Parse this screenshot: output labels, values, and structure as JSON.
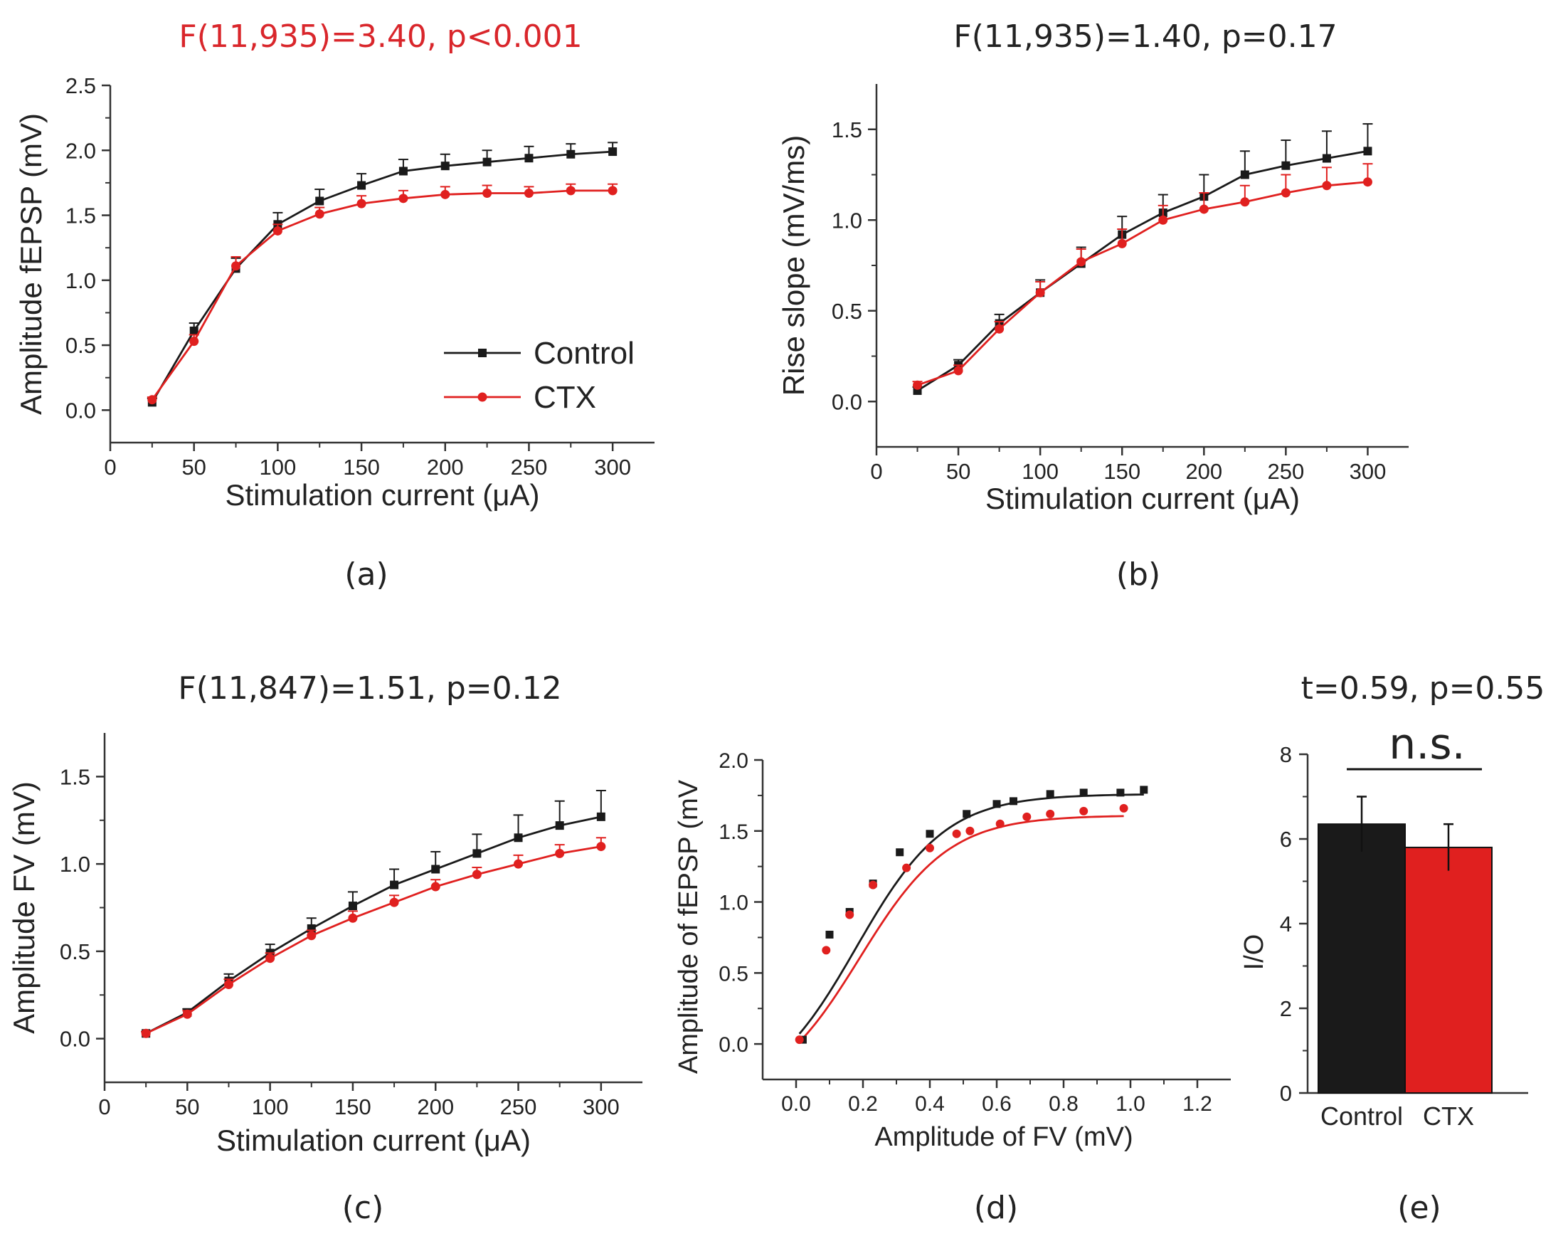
{
  "colors": {
    "control": "#1a1a1a",
    "ctx": "#e0201f",
    "stat_red": "#d9262b",
    "axis": "#333333"
  },
  "chart_data": [
    {
      "id": "a",
      "type": "line",
      "caption": "(a)",
      "title": "F(11,935)=3.40, p<0.001",
      "title_color": "#d9262b",
      "xlabel": "Stimulation current (μA)",
      "ylabel": "Amplitude fEPSP (mV)",
      "xlim": [
        0,
        325
      ],
      "ylim": [
        -0.25,
        2.5
      ],
      "xticks": [
        0,
        50,
        100,
        150,
        200,
        250,
        300
      ],
      "xtick_labels": [
        "0",
        "50",
        "100",
        "150",
        "200",
        "250",
        "300"
      ],
      "yticks": [
        0,
        0.5,
        1.0,
        1.5,
        2.0,
        2.5
      ],
      "ytick_labels": [
        "0.0",
        "0.5",
        "1.0",
        "1.5",
        "2.0",
        "2.5"
      ],
      "x": [
        25,
        50,
        75,
        100,
        125,
        150,
        175,
        200,
        225,
        250,
        275,
        300
      ],
      "series": [
        {
          "name": "Control",
          "marker": "square",
          "values": [
            0.06,
            0.61,
            1.09,
            1.43,
            1.61,
            1.73,
            1.84,
            1.88,
            1.91,
            1.94,
            1.97,
            1.99
          ],
          "err": [
            0.03,
            0.06,
            0.08,
            0.09,
            0.09,
            0.09,
            0.09,
            0.09,
            0.09,
            0.09,
            0.08,
            0.07
          ]
        },
        {
          "name": "CTX",
          "marker": "circle",
          "values": [
            0.08,
            0.53,
            1.11,
            1.38,
            1.51,
            1.59,
            1.63,
            1.66,
            1.67,
            1.67,
            1.69,
            1.69
          ],
          "err": [
            0.02,
            0.05,
            0.07,
            0.05,
            0.05,
            0.06,
            0.06,
            0.06,
            0.06,
            0.05,
            0.05,
            0.05
          ]
        }
      ],
      "legend": {
        "position": "bottom-right",
        "labels": [
          "Control",
          "CTX"
        ]
      }
    },
    {
      "id": "b",
      "type": "line",
      "caption": "(b)",
      "title": "F(11,935)=1.40, p=0.17",
      "title_color": "#222222",
      "xlabel": "Stimulation current (μA)",
      "ylabel": "Rise slope (mV/ms)",
      "xlim": [
        0,
        325
      ],
      "ylim": [
        -0.25,
        1.75
      ],
      "xticks": [
        0,
        50,
        100,
        150,
        200,
        250,
        300
      ],
      "xtick_labels": [
        "0",
        "50",
        "100",
        "150",
        "200",
        "250",
        "300"
      ],
      "yticks": [
        0,
        0.5,
        1.0,
        1.5
      ],
      "ytick_labels": [
        "0.0",
        "0.5",
        "1.0",
        "1.5"
      ],
      "x": [
        25,
        50,
        75,
        100,
        125,
        150,
        175,
        200,
        225,
        250,
        275,
        300
      ],
      "series": [
        {
          "name": "Control",
          "marker": "square",
          "values": [
            0.06,
            0.2,
            0.43,
            0.6,
            0.76,
            0.92,
            1.04,
            1.13,
            1.25,
            1.3,
            1.34,
            1.38
          ],
          "err": [
            0.02,
            0.03,
            0.05,
            0.07,
            0.09,
            0.1,
            0.1,
            0.12,
            0.13,
            0.14,
            0.15,
            0.15
          ]
        },
        {
          "name": "CTX",
          "marker": "circle",
          "values": [
            0.09,
            0.17,
            0.4,
            0.6,
            0.77,
            0.87,
            1.0,
            1.06,
            1.1,
            1.15,
            1.19,
            1.21
          ],
          "err": [
            0.02,
            0.03,
            0.04,
            0.06,
            0.07,
            0.08,
            0.08,
            0.09,
            0.09,
            0.1,
            0.1,
            0.1
          ]
        }
      ]
    },
    {
      "id": "c",
      "type": "line",
      "caption": "(c)",
      "title": "F(11,847)=1.51, p=0.12",
      "title_color": "#222222",
      "xlabel": "Stimulation current (μA)",
      "ylabel": "Amplitude FV (mV)",
      "xlim": [
        0,
        325
      ],
      "ylim": [
        -0.25,
        1.75
      ],
      "xticks": [
        0,
        50,
        100,
        150,
        200,
        250,
        300
      ],
      "xtick_labels": [
        "0",
        "50",
        "100",
        "150",
        "200",
        "250",
        "300"
      ],
      "yticks": [
        0,
        0.5,
        1.0,
        1.5
      ],
      "ytick_labels": [
        "0.0",
        "0.5",
        "1.0",
        "1.5"
      ],
      "x": [
        25,
        50,
        75,
        100,
        125,
        150,
        175,
        200,
        225,
        250,
        275,
        300
      ],
      "series": [
        {
          "name": "Control",
          "marker": "square",
          "values": [
            0.03,
            0.15,
            0.33,
            0.49,
            0.63,
            0.76,
            0.88,
            0.97,
            1.06,
            1.15,
            1.22,
            1.27
          ],
          "err": [
            0.01,
            0.02,
            0.04,
            0.05,
            0.06,
            0.08,
            0.09,
            0.1,
            0.11,
            0.13,
            0.14,
            0.15
          ]
        },
        {
          "name": "CTX",
          "marker": "circle",
          "values": [
            0.03,
            0.14,
            0.31,
            0.46,
            0.59,
            0.69,
            0.78,
            0.87,
            0.94,
            1.0,
            1.06,
            1.1
          ],
          "err": [
            0.01,
            0.02,
            0.03,
            0.03,
            0.03,
            0.04,
            0.04,
            0.04,
            0.04,
            0.05,
            0.05,
            0.05
          ]
        }
      ]
    },
    {
      "id": "d",
      "type": "scatter",
      "caption": "(d)",
      "title": "",
      "xlabel": "Amplitude of FV (mV)",
      "ylabel": "Amplitude of fEPSP (mV",
      "xlim": [
        -0.1,
        1.3
      ],
      "ylim": [
        -0.25,
        2.0
      ],
      "xticks": [
        0,
        0.2,
        0.4,
        0.6,
        0.8,
        1.0,
        1.2
      ],
      "xtick_labels": [
        "0.0",
        "0.2",
        "0.4",
        "0.6",
        "0.8",
        "1.0",
        "1.2"
      ],
      "yticks": [
        0,
        0.5,
        1.0,
        1.5,
        2.0
      ],
      "ytick_labels": [
        "0.0",
        "0.5",
        "1.0",
        "1.5",
        "2.0"
      ],
      "series": [
        {
          "name": "Control",
          "marker": "square",
          "x": [
            0.02,
            0.1,
            0.16,
            0.23,
            0.31,
            0.4,
            0.51,
            0.6,
            0.65,
            0.76,
            0.86,
            0.97,
            1.04
          ],
          "y": [
            0.03,
            0.77,
            0.93,
            1.13,
            1.35,
            1.48,
            1.62,
            1.69,
            1.71,
            1.76,
            1.77,
            1.77,
            1.79
          ]
        },
        {
          "name": "CTX",
          "marker": "circle",
          "x": [
            0.01,
            0.09,
            0.16,
            0.23,
            0.33,
            0.4,
            0.48,
            0.52,
            0.61,
            0.69,
            0.76,
            0.86,
            0.98
          ],
          "y": [
            0.03,
            0.66,
            0.91,
            1.12,
            1.24,
            1.38,
            1.48,
            1.5,
            1.55,
            1.6,
            1.62,
            1.64,
            1.66
          ]
        }
      ],
      "fits": [
        {
          "name": "Control fit",
          "x_range": [
            0.01,
            1.04
          ],
          "ymin": -0.4,
          "ymax": 1.76,
          "x0": 0.18,
          "k": 7.5
        },
        {
          "name": "CTX fit",
          "x_range": [
            0.01,
            0.98
          ],
          "ymin": -0.4,
          "ymax": 1.61,
          "x0": 0.19,
          "k": 7.5
        }
      ]
    },
    {
      "id": "e",
      "type": "bar",
      "caption": "(e)",
      "title": "t=0.59, p=0.55",
      "annotation": "n.s.",
      "xlabel": "",
      "ylabel": "I/O",
      "ylim": [
        0,
        8
      ],
      "yticks": [
        0,
        2,
        4,
        6,
        8
      ],
      "ytick_labels": [
        "0",
        "2",
        "4",
        "6",
        "8"
      ],
      "categories": [
        "Control",
        "CTX"
      ],
      "values": [
        6.35,
        5.8
      ],
      "err": [
        0.65,
        0.55
      ]
    }
  ]
}
